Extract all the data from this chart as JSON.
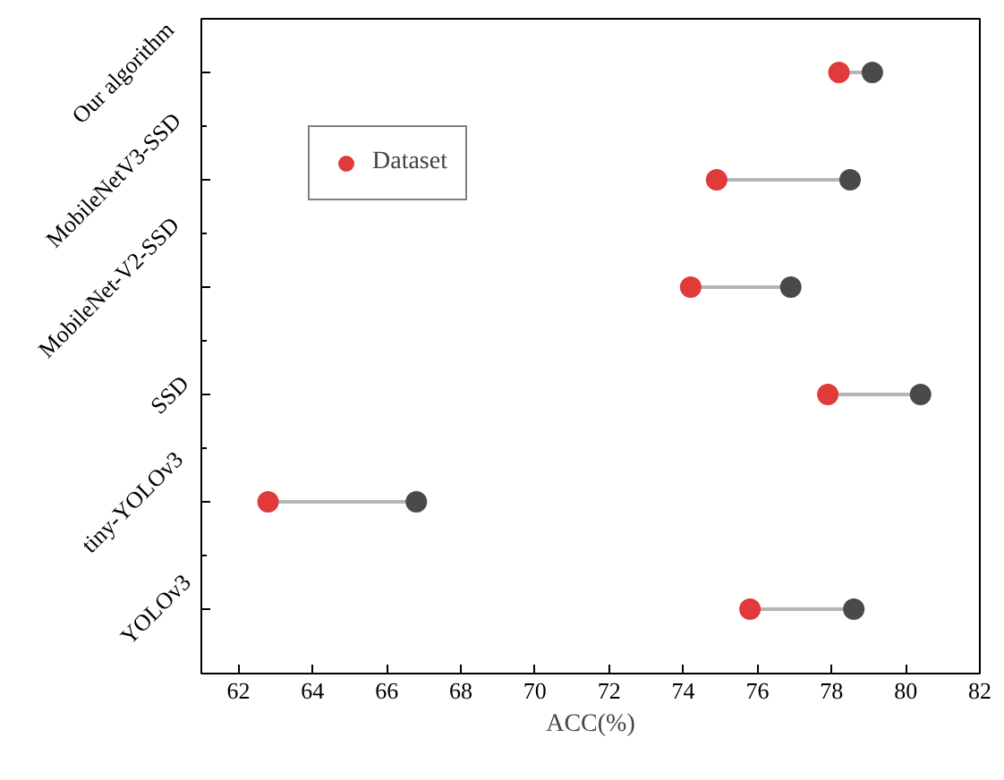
{
  "chart_data": {
    "type": "scatter",
    "orientation": "horizontal",
    "xlabel": "ACC(%)",
    "categories": [
      "Our algorithm",
      "MobileNetV3-SSD",
      "MobileNet-V2-SSD",
      "SSD",
      "tiny-YOLOv3",
      "YOLOv3"
    ],
    "series": [
      {
        "name": "Dataset",
        "color": "#e03a3a",
        "values": [
          78.2,
          74.9,
          74.2,
          77.9,
          62.8,
          75.8
        ]
      },
      {
        "color": "#4a4a4a",
        "values": [
          79.1,
          78.5,
          76.9,
          80.4,
          66.8,
          78.6
        ]
      }
    ],
    "xlim": [
      61,
      82
    ],
    "xticks": [
      62,
      64,
      66,
      68,
      70,
      72,
      74,
      76,
      78,
      80,
      82
    ],
    "marker": "circle",
    "legend": "top left",
    "grid": false
  }
}
